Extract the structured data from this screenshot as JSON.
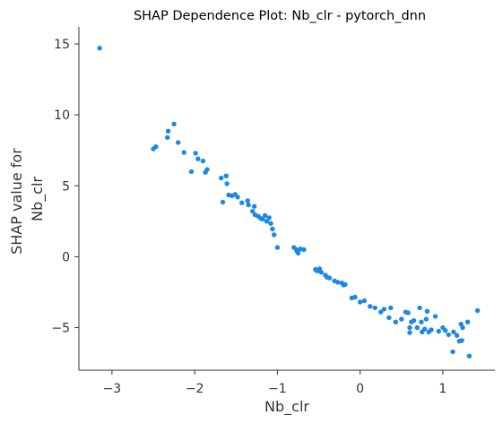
{
  "chart_data": {
    "type": "scatter",
    "title": "SHAP Dependence Plot: Nb_clr - pytorch_dnn",
    "xlabel": "Nb_clr",
    "ylabel_lines": [
      "SHAP value for",
      "Nb_clr"
    ],
    "xlim": [
      -3.4,
      1.63
    ],
    "ylim": [
      -8.0,
      16.2
    ],
    "xticks": [
      -3,
      -2,
      -1,
      0,
      1
    ],
    "yticks": [
      -5,
      0,
      5,
      10,
      15
    ],
    "xtick_labels": [
      "−3",
      "−2",
      "−1",
      "0",
      "1"
    ],
    "ytick_labels": [
      "−5",
      "0",
      "5",
      "10",
      "15"
    ],
    "grid": false,
    "point_color": "#1E88E5",
    "points": [
      [
        -3.15,
        14.7
      ],
      [
        -2.5,
        7.6
      ],
      [
        -2.47,
        7.75
      ],
      [
        -2.33,
        8.4
      ],
      [
        -2.32,
        8.85
      ],
      [
        -2.25,
        9.35
      ],
      [
        -2.2,
        8.05
      ],
      [
        -2.13,
        7.35
      ],
      [
        -2.04,
        6.0
      ],
      [
        -1.99,
        7.3
      ],
      [
        -1.96,
        6.9
      ],
      [
        -1.9,
        6.75
      ],
      [
        -1.87,
        5.95
      ],
      [
        -1.85,
        6.15
      ],
      [
        -1.68,
        5.55
      ],
      [
        -1.66,
        3.85
      ],
      [
        -1.62,
        5.7
      ],
      [
        -1.61,
        5.15
      ],
      [
        -1.59,
        4.35
      ],
      [
        -1.55,
        4.3
      ],
      [
        -1.51,
        4.4
      ],
      [
        -1.48,
        4.2
      ],
      [
        -1.43,
        3.8
      ],
      [
        -1.36,
        3.95
      ],
      [
        -1.35,
        3.65
      ],
      [
        -1.3,
        3.2
      ],
      [
        -1.28,
        3.55
      ],
      [
        -1.27,
        2.95
      ],
      [
        -1.23,
        2.85
      ],
      [
        -1.2,
        2.7
      ],
      [
        -1.18,
        2.65
      ],
      [
        -1.15,
        2.9
      ],
      [
        -1.13,
        2.5
      ],
      [
        -1.1,
        2.75
      ],
      [
        -1.08,
        2.35
      ],
      [
        -1.06,
        1.95
      ],
      [
        -1.04,
        1.55
      ],
      [
        -1.0,
        0.65
      ],
      [
        -0.8,
        0.65
      ],
      [
        -0.77,
        0.5
      ],
      [
        -0.76,
        0.35
      ],
      [
        -0.75,
        0.25
      ],
      [
        -0.72,
        0.55
      ],
      [
        -0.68,
        0.5
      ],
      [
        -0.54,
        -0.9
      ],
      [
        -0.52,
        -1.0
      ],
      [
        -0.49,
        -0.85
      ],
      [
        -0.47,
        -1.1
      ],
      [
        -0.42,
        -1.3
      ],
      [
        -0.4,
        -1.45
      ],
      [
        -0.37,
        -1.5
      ],
      [
        -0.31,
        -1.7
      ],
      [
        -0.27,
        -1.8
      ],
      [
        -0.22,
        -1.85
      ],
      [
        -0.2,
        -2.0
      ],
      [
        -0.18,
        -1.95
      ],
      [
        -0.1,
        -2.9
      ],
      [
        -0.06,
        -2.85
      ],
      [
        0.0,
        -3.2
      ],
      [
        0.05,
        -3.1
      ],
      [
        0.12,
        -3.5
      ],
      [
        0.18,
        -3.6
      ],
      [
        0.25,
        -3.9
      ],
      [
        0.29,
        -3.7
      ],
      [
        0.35,
        -4.3
      ],
      [
        0.37,
        -3.6
      ],
      [
        0.43,
        -4.6
      ],
      [
        0.5,
        -4.4
      ],
      [
        0.55,
        -3.9
      ],
      [
        0.58,
        -3.95
      ],
      [
        0.6,
        -5.0
      ],
      [
        0.6,
        -5.35
      ],
      [
        0.62,
        -4.6
      ],
      [
        0.65,
        -4.5
      ],
      [
        0.69,
        -5.0
      ],
      [
        0.72,
        -3.6
      ],
      [
        0.74,
        -4.6
      ],
      [
        0.75,
        -5.3
      ],
      [
        0.78,
        -5.1
      ],
      [
        0.8,
        -4.4
      ],
      [
        0.81,
        -3.85
      ],
      [
        0.83,
        -5.3
      ],
      [
        0.86,
        -5.15
      ],
      [
        0.91,
        -4.2
      ],
      [
        0.95,
        -5.25
      ],
      [
        1.0,
        -5.0
      ],
      [
        1.03,
        -5.2
      ],
      [
        1.07,
        -5.5
      ],
      [
        1.12,
        -6.7
      ],
      [
        1.13,
        -5.3
      ],
      [
        1.17,
        -5.55
      ],
      [
        1.2,
        -5.95
      ],
      [
        1.22,
        -4.75
      ],
      [
        1.23,
        -5.9
      ],
      [
        1.24,
        -5.0
      ],
      [
        1.3,
        -4.6
      ],
      [
        1.32,
        -7.0
      ],
      [
        1.42,
        -3.8
      ]
    ]
  }
}
